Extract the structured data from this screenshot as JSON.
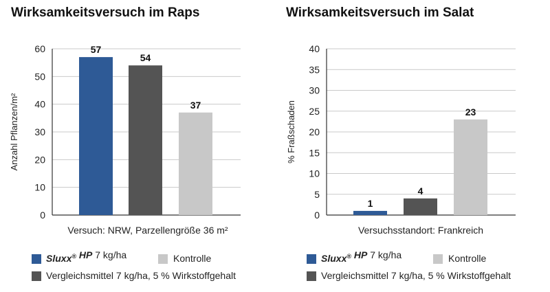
{
  "legend": {
    "brand_name": "Sluxx",
    "brand_mark": "®",
    "brand_suffix": " HP",
    "brand_rate": " 7 kg/ha",
    "control": "Kontrolle",
    "comparison": "Vergleichsmittel 7 kg/ha, 5 % Wirkstoffgehalt"
  },
  "colors": {
    "sluxx": "#2e5a96",
    "comparison": "#545454",
    "control": "#c8c8c8",
    "grid": "#c9c9c9",
    "axis": "#333333"
  },
  "chart_data": [
    {
      "type": "bar",
      "title": "Wirksamkeitsversuch im Raps",
      "xlabel": "Versuch: NRW, Parzellengröße 36 m²",
      "ylabel": "Anzahl Pflanzen/m²",
      "ylim": [
        0,
        60
      ],
      "yticks": [
        0,
        10,
        20,
        30,
        40,
        50,
        60
      ],
      "grid": true,
      "legend_position": "bottom",
      "values": [
        57,
        54,
        37
      ],
      "value_labels": [
        "57",
        "54",
        "37"
      ],
      "bar_colors": [
        "sluxx",
        "comparison",
        "control"
      ]
    },
    {
      "type": "bar",
      "title": "Wirksamkeitsversuch im Salat",
      "xlabel": "Versuchsstandort: Frankreich",
      "ylabel": "% Fraßschaden",
      "ylim": [
        0,
        40
      ],
      "yticks": [
        0,
        5,
        10,
        15,
        20,
        25,
        30,
        35,
        40
      ],
      "grid": true,
      "legend_position": "bottom",
      "values": [
        1,
        4,
        23
      ],
      "value_labels": [
        "1",
        "4",
        "23"
      ],
      "bar_colors": [
        "sluxx",
        "comparison",
        "control"
      ]
    }
  ]
}
